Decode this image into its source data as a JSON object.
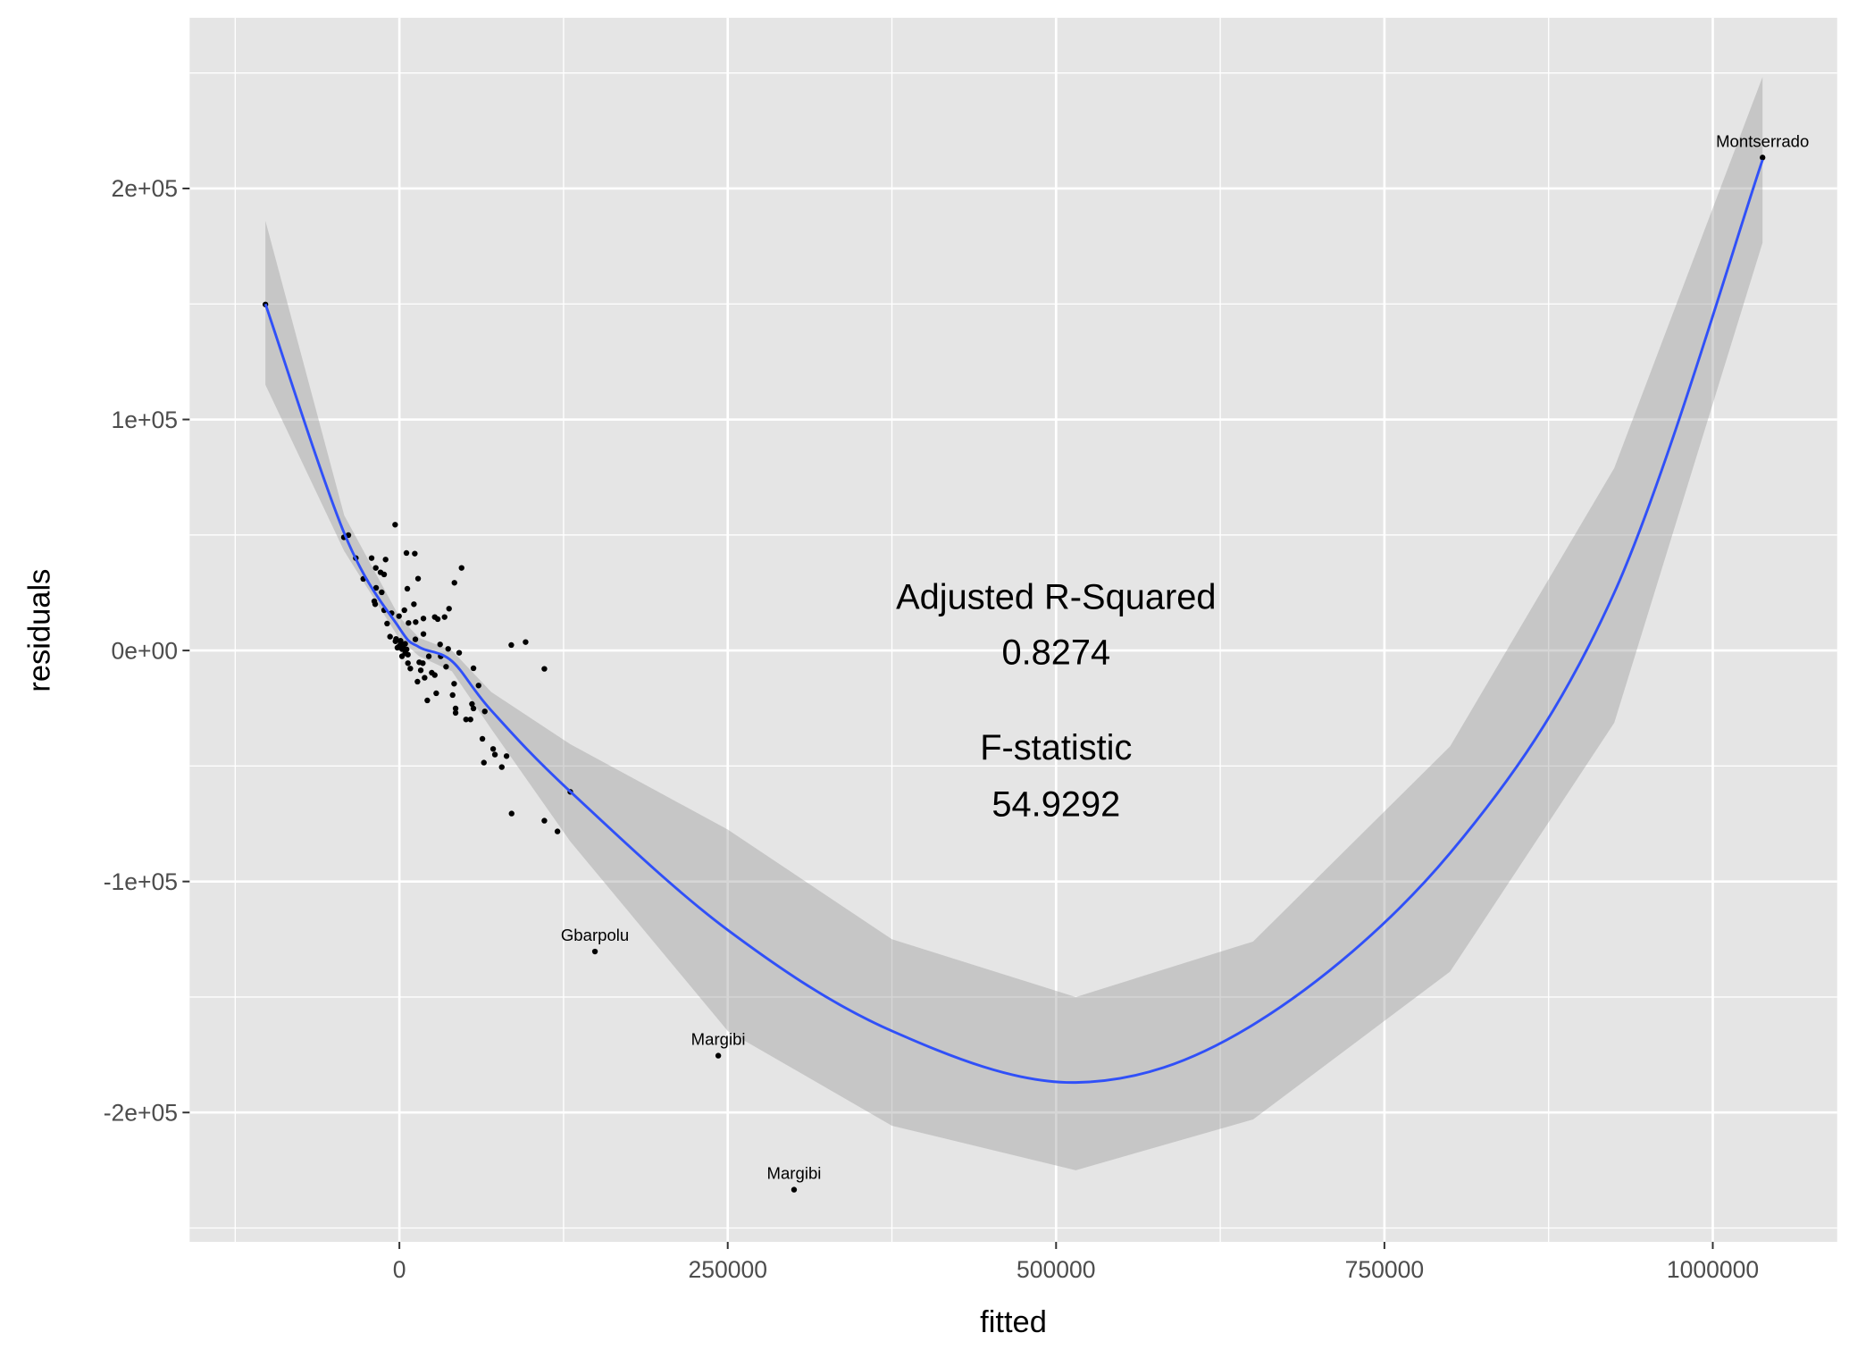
{
  "chart_data": {
    "type": "scatter",
    "title": "",
    "xlabel": "fitted",
    "ylabel": "residuals",
    "xlim": [
      -159700,
      1094700
    ],
    "ylim": [
      -256000,
      273900
    ],
    "grid": true,
    "x_ticks": [
      0,
      250000,
      500000,
      750000,
      1000000
    ],
    "x_tick_labels": [
      "0",
      "250000",
      "500000",
      "750000",
      "1000000"
    ],
    "y_ticks": [
      200000,
      100000,
      0,
      -100000,
      -200000
    ],
    "y_tick_labels": [
      "2e+05",
      "1e+05",
      "0e+00",
      "-1e+05",
      "-2e+05"
    ],
    "colors": {
      "panel": "#e5e5e5",
      "grid": "#ffffff",
      "points": "#000000",
      "smooth": "#3050f8",
      "band": "#bdbdbd"
    },
    "points": [
      [
        -102000,
        149800
      ],
      [
        -3240,
        54450
      ],
      [
        -42250,
        49000
      ],
      [
        -38840,
        49940
      ],
      [
        -33170,
        40010
      ],
      [
        -21150,
        40010
      ],
      [
        -10500,
        39370
      ],
      [
        5380,
        42200
      ],
      [
        11730,
        41950
      ],
      [
        -17980,
        35760
      ],
      [
        -14350,
        33830
      ],
      [
        -11630,
        32920
      ],
      [
        -27500,
        31000
      ],
      [
        14230,
        31120
      ],
      [
        47340,
        35760
      ],
      [
        41900,
        29320
      ],
      [
        6060,
        26740
      ],
      [
        -17750,
        27120
      ],
      [
        -13440,
        25190
      ],
      [
        -19110,
        21320
      ],
      [
        -18430,
        20040
      ],
      [
        11050,
        20040
      ],
      [
        37810,
        18100
      ],
      [
        -11630,
        17460
      ],
      [
        3800,
        17460
      ],
      [
        -5960,
        16170
      ],
      [
        -290,
        14880
      ],
      [
        18310,
        13850
      ],
      [
        26930,
        14490
      ],
      [
        29200,
        13590
      ],
      [
        34410,
        14490
      ],
      [
        6970,
        11910
      ],
      [
        12410,
        12300
      ],
      [
        -9360,
        11660
      ],
      [
        18310,
        7140
      ],
      [
        -7100,
        6000
      ],
      [
        -2500,
        5000
      ],
      [
        900,
        4200
      ],
      [
        4400,
        2900
      ],
      [
        -200,
        1800
      ],
      [
        2000,
        600
      ],
      [
        4400,
        -1200
      ],
      [
        6500,
        -1800
      ],
      [
        -1500,
        1200
      ],
      [
        2000,
        -2500
      ],
      [
        1000,
        3000
      ],
      [
        3000,
        1000
      ],
      [
        -3000,
        4000
      ],
      [
        5500,
        500
      ],
      [
        12180,
        4830
      ],
      [
        31010,
        2630
      ],
      [
        37130,
        700
      ],
      [
        45520,
        -980
      ],
      [
        85210,
        2370
      ],
      [
        96100,
        3660
      ],
      [
        110390,
        -7940
      ],
      [
        22390,
        -2520
      ],
      [
        31460,
        -2520
      ],
      [
        6510,
        -5490
      ],
      [
        8330,
        -7810
      ],
      [
        15130,
        -5100
      ],
      [
        17850,
        -5490
      ],
      [
        35550,
        -7030
      ],
      [
        56410,
        -7680
      ],
      [
        16270,
        -8580
      ],
      [
        24660,
        -9610
      ],
      [
        26930,
        -10640
      ],
      [
        19210,
        -11800
      ],
      [
        13770,
        -13480
      ],
      [
        41670,
        -14380
      ],
      [
        60270,
        -15160
      ],
      [
        40530,
        -19280
      ],
      [
        28060,
        -18510
      ],
      [
        21260,
        -21600
      ],
      [
        55270,
        -23150
      ],
      [
        56410,
        -25080
      ],
      [
        42800,
        -25080
      ],
      [
        42800,
        -27010
      ],
      [
        65030,
        -26370
      ],
      [
        50740,
        -29850
      ],
      [
        54140,
        -29850
      ],
      [
        63210,
        -38230
      ],
      [
        71380,
        -42610
      ],
      [
        72740,
        -45060
      ],
      [
        81590,
        -45700
      ],
      [
        64350,
        -48540
      ],
      [
        77960,
        -50470
      ],
      [
        130120,
        -61170
      ],
      [
        85440,
        -70580
      ],
      [
        110390,
        -73680
      ],
      [
        120370,
        -78320
      ],
      [
        148900,
        -130300
      ],
      [
        242800,
        -175400
      ],
      [
        300500,
        -233400
      ],
      [
        1037900,
        213400
      ]
    ],
    "point_labels": [
      {
        "x": 148900,
        "y": -130300,
        "text": "Gbarpolu"
      },
      {
        "x": 242800,
        "y": -175400,
        "text": "Margibi"
      },
      {
        "x": 300500,
        "y": -233400,
        "text": "Margibi"
      },
      {
        "x": 1037900,
        "y": 213400,
        "text": "Montserrado"
      }
    ],
    "smooth": {
      "x": [
        -102000,
        -42000,
        0,
        15000,
        40000,
        70000,
        130000,
        250000,
        375000,
        515000,
        650000,
        800000,
        925000,
        1037900
      ],
      "y": [
        150000,
        50800,
        9700,
        1500,
        -4600,
        -26000,
        -61000,
        -121000,
        -164700,
        -187000,
        -162000,
        -87700,
        25000,
        212400
      ],
      "lower": [
        115000,
        43000,
        5000,
        -2500,
        -9000,
        -34000,
        -82600,
        -164700,
        -205700,
        -225000,
        -203000,
        -139000,
        -31300,
        176500
      ],
      "upper": [
        186000,
        58500,
        14500,
        5500,
        0,
        -18000,
        -40500,
        -77500,
        -125000,
        -150000,
        -126000,
        -41500,
        79000,
        248300
      ]
    },
    "annotations": [
      {
        "x": 500000,
        "y": 23600,
        "text": "Adjusted R-Squared"
      },
      {
        "x": 500000,
        "y": -400,
        "text": "0.8274"
      },
      {
        "x": 500000,
        "y": -41500,
        "text": "F-statistic"
      },
      {
        "x": 500000,
        "y": -66000,
        "text": "54.9292"
      }
    ]
  }
}
